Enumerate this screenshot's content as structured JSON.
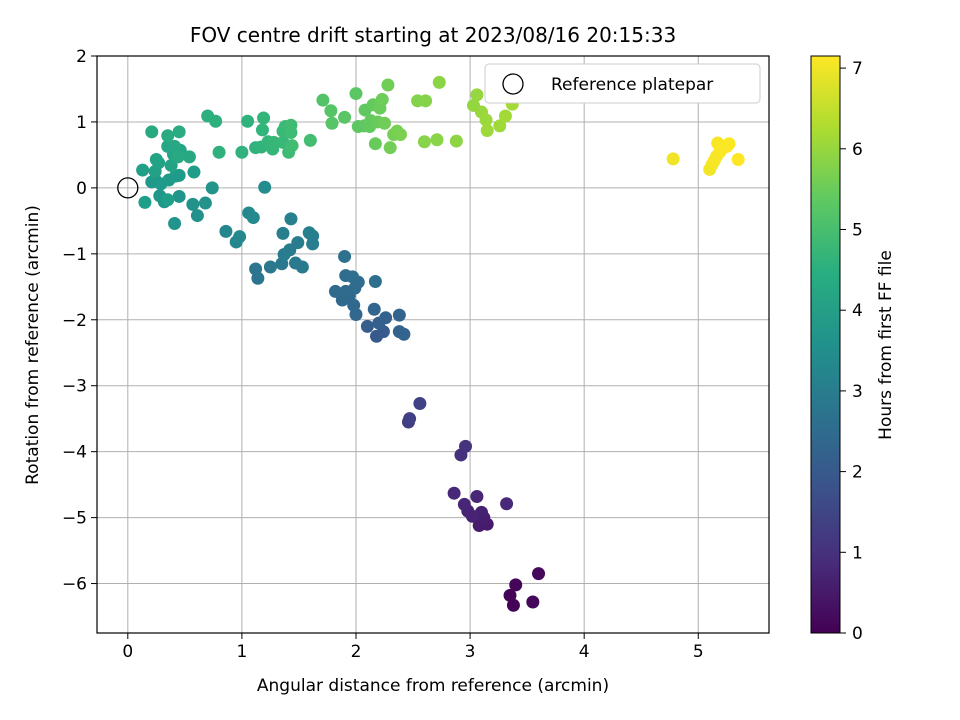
{
  "chart_data": {
    "type": "scatter",
    "title": "FOV centre drift starting at 2023/08/16 20:15:33",
    "xlabel": "Angular distance from reference (arcmin)",
    "ylabel": "Rotation from reference (arcmin)",
    "xlim": [
      -0.27,
      5.62
    ],
    "ylim": [
      -6.75,
      2.0
    ],
    "xticks": [
      0,
      1,
      2,
      3,
      4,
      5
    ],
    "yticks": [
      2,
      1,
      0,
      -1,
      -2,
      -3,
      -4,
      -5,
      -6
    ],
    "grid": true,
    "legend": {
      "position": "top-right",
      "entries": [
        "Reference platepar"
      ]
    },
    "reference_point": {
      "x": 0.0,
      "y": 0.0
    },
    "colorbar": {
      "label": "Hours from first FF file",
      "range": [
        0,
        7.15
      ],
      "ticks": [
        0,
        1,
        2,
        3,
        4,
        5,
        6,
        7
      ],
      "colormap": "viridis"
    },
    "points": [
      {
        "x": 3.38,
        "y": -6.33,
        "h": 0.05
      },
      {
        "x": 3.35,
        "y": -6.18,
        "h": 0.08
      },
      {
        "x": 3.4,
        "y": -6.02,
        "h": 0.1
      },
      {
        "x": 3.55,
        "y": -6.28,
        "h": 0.12
      },
      {
        "x": 3.6,
        "y": -5.85,
        "h": 0.15
      },
      {
        "x": 3.15,
        "y": -5.1,
        "h": 0.5
      },
      {
        "x": 3.08,
        "y": -5.12,
        "h": 0.55
      },
      {
        "x": 3.12,
        "y": -5.0,
        "h": 0.6
      },
      {
        "x": 3.1,
        "y": -4.92,
        "h": 0.65
      },
      {
        "x": 3.02,
        "y": -4.98,
        "h": 0.7
      },
      {
        "x": 2.98,
        "y": -4.9,
        "h": 0.72
      },
      {
        "x": 2.95,
        "y": -4.8,
        "h": 0.75
      },
      {
        "x": 3.06,
        "y": -4.68,
        "h": 0.78
      },
      {
        "x": 2.86,
        "y": -4.63,
        "h": 0.8
      },
      {
        "x": 3.32,
        "y": -4.79,
        "h": 0.82
      },
      {
        "x": 2.92,
        "y": -4.05,
        "h": 1.0
      },
      {
        "x": 2.96,
        "y": -3.92,
        "h": 1.05
      },
      {
        "x": 2.46,
        "y": -3.55,
        "h": 1.3
      },
      {
        "x": 2.47,
        "y": -3.5,
        "h": 1.35
      },
      {
        "x": 2.56,
        "y": -3.27,
        "h": 1.4
      },
      {
        "x": 2.18,
        "y": -2.25,
        "h": 2.0
      },
      {
        "x": 2.24,
        "y": -2.18,
        "h": 2.05
      },
      {
        "x": 2.1,
        "y": -2.1,
        "h": 2.1
      },
      {
        "x": 2.2,
        "y": -2.05,
        "h": 2.15
      },
      {
        "x": 2.26,
        "y": -1.97,
        "h": 2.2
      },
      {
        "x": 2.38,
        "y": -2.18,
        "h": 2.25
      },
      {
        "x": 2.42,
        "y": -2.22,
        "h": 2.28
      },
      {
        "x": 2.38,
        "y": -1.93,
        "h": 2.3
      },
      {
        "x": 2.16,
        "y": -1.84,
        "h": 2.32
      },
      {
        "x": 2.0,
        "y": -1.92,
        "h": 2.35
      },
      {
        "x": 1.98,
        "y": -1.78,
        "h": 2.38
      },
      {
        "x": 1.94,
        "y": -1.64,
        "h": 2.4
      },
      {
        "x": 1.88,
        "y": -1.7,
        "h": 2.42
      },
      {
        "x": 1.82,
        "y": -1.57,
        "h": 2.45
      },
      {
        "x": 1.91,
        "y": -1.57,
        "h": 2.48
      },
      {
        "x": 1.99,
        "y": -1.52,
        "h": 2.5
      },
      {
        "x": 2.02,
        "y": -1.43,
        "h": 2.52
      },
      {
        "x": 1.91,
        "y": -1.33,
        "h": 2.55
      },
      {
        "x": 1.97,
        "y": -1.35,
        "h": 2.58
      },
      {
        "x": 2.17,
        "y": -1.42,
        "h": 2.6
      },
      {
        "x": 1.9,
        "y": -1.04,
        "h": 2.65
      },
      {
        "x": 1.14,
        "y": -1.37,
        "h": 2.8
      },
      {
        "x": 1.12,
        "y": -1.23,
        "h": 2.82
      },
      {
        "x": 1.25,
        "y": -1.2,
        "h": 2.85
      },
      {
        "x": 1.35,
        "y": -1.15,
        "h": 2.88
      },
      {
        "x": 1.47,
        "y": -1.14,
        "h": 2.9
      },
      {
        "x": 1.53,
        "y": -1.2,
        "h": 2.92
      },
      {
        "x": 1.37,
        "y": -1.01,
        "h": 2.95
      },
      {
        "x": 1.42,
        "y": -0.94,
        "h": 2.98
      },
      {
        "x": 1.49,
        "y": -0.83,
        "h": 3.0
      },
      {
        "x": 1.62,
        "y": -0.85,
        "h": 3.02
      },
      {
        "x": 1.62,
        "y": -0.73,
        "h": 3.05
      },
      {
        "x": 1.59,
        "y": -0.68,
        "h": 3.08
      },
      {
        "x": 1.36,
        "y": -0.69,
        "h": 3.1
      },
      {
        "x": 1.43,
        "y": -0.47,
        "h": 3.12
      },
      {
        "x": 0.86,
        "y": -0.66,
        "h": 3.3
      },
      {
        "x": 0.95,
        "y": -0.82,
        "h": 3.32
      },
      {
        "x": 0.98,
        "y": -0.74,
        "h": 3.35
      },
      {
        "x": 1.06,
        "y": -0.38,
        "h": 3.38
      },
      {
        "x": 1.1,
        "y": -0.45,
        "h": 3.4
      },
      {
        "x": 1.2,
        "y": 0.01,
        "h": 3.45
      },
      {
        "x": 0.61,
        "y": -0.42,
        "h": 3.6
      },
      {
        "x": 0.68,
        "y": -0.23,
        "h": 3.62
      },
      {
        "x": 0.57,
        "y": -0.25,
        "h": 3.65
      },
      {
        "x": 0.41,
        "y": -0.54,
        "h": 3.68
      },
      {
        "x": 0.74,
        "y": 0.0,
        "h": 3.7
      },
      {
        "x": 0.45,
        "y": -0.13,
        "h": 3.72
      },
      {
        "x": 0.32,
        "y": -0.21,
        "h": 3.75
      },
      {
        "x": 0.28,
        "y": -0.12,
        "h": 3.78
      },
      {
        "x": 0.21,
        "y": 0.09,
        "h": 3.8
      },
      {
        "x": 0.24,
        "y": 0.12,
        "h": 3.82
      },
      {
        "x": 0.29,
        "y": 0.06,
        "h": 3.85
      },
      {
        "x": 0.36,
        "y": 0.12,
        "h": 3.88
      },
      {
        "x": 0.42,
        "y": 0.18,
        "h": 3.9
      },
      {
        "x": 0.45,
        "y": 0.19,
        "h": 3.92
      },
      {
        "x": 0.58,
        "y": 0.24,
        "h": 3.95
      },
      {
        "x": 0.15,
        "y": -0.22,
        "h": 3.97
      },
      {
        "x": 0.35,
        "y": -0.18,
        "h": 4.0
      },
      {
        "x": 0.13,
        "y": 0.27,
        "h": 4.05
      },
      {
        "x": 0.24,
        "y": 0.25,
        "h": 4.08
      },
      {
        "x": 0.27,
        "y": 0.38,
        "h": 4.1
      },
      {
        "x": 0.25,
        "y": 0.43,
        "h": 4.12
      },
      {
        "x": 0.38,
        "y": 0.34,
        "h": 4.15
      },
      {
        "x": 0.4,
        "y": 0.51,
        "h": 4.18
      },
      {
        "x": 0.46,
        "y": 0.57,
        "h": 4.2
      },
      {
        "x": 0.35,
        "y": 0.63,
        "h": 4.22
      },
      {
        "x": 0.41,
        "y": 0.63,
        "h": 4.25
      },
      {
        "x": 0.44,
        "y": 0.47,
        "h": 4.28
      },
      {
        "x": 0.54,
        "y": 0.47,
        "h": 4.3
      },
      {
        "x": 0.21,
        "y": 0.85,
        "h": 4.32
      },
      {
        "x": 0.35,
        "y": 0.79,
        "h": 4.35
      },
      {
        "x": 0.45,
        "y": 0.85,
        "h": 4.38
      },
      {
        "x": 0.7,
        "y": 1.09,
        "h": 4.5
      },
      {
        "x": 0.77,
        "y": 1.01,
        "h": 4.52
      },
      {
        "x": 0.8,
        "y": 0.54,
        "h": 4.55
      },
      {
        "x": 1.0,
        "y": 0.54,
        "h": 4.58
      },
      {
        "x": 1.05,
        "y": 1.01,
        "h": 4.6
      },
      {
        "x": 1.12,
        "y": 0.61,
        "h": 4.62
      },
      {
        "x": 1.17,
        "y": 0.62,
        "h": 4.65
      },
      {
        "x": 1.18,
        "y": 0.88,
        "h": 4.68
      },
      {
        "x": 1.19,
        "y": 1.06,
        "h": 4.7
      },
      {
        "x": 1.23,
        "y": 0.7,
        "h": 4.72
      },
      {
        "x": 1.27,
        "y": 0.59,
        "h": 4.75
      },
      {
        "x": 1.28,
        "y": 0.69,
        "h": 4.78
      },
      {
        "x": 1.36,
        "y": 0.69,
        "h": 4.8
      },
      {
        "x": 1.36,
        "y": 0.86,
        "h": 4.82
      },
      {
        "x": 1.38,
        "y": 0.93,
        "h": 4.85
      },
      {
        "x": 1.41,
        "y": 0.54,
        "h": 4.88
      },
      {
        "x": 1.43,
        "y": 0.84,
        "h": 4.9
      },
      {
        "x": 1.43,
        "y": 0.95,
        "h": 4.92
      },
      {
        "x": 1.44,
        "y": 0.64,
        "h": 4.95
      },
      {
        "x": 1.6,
        "y": 0.72,
        "h": 4.98
      },
      {
        "x": 1.71,
        "y": 1.33,
        "h": 5.2
      },
      {
        "x": 1.78,
        "y": 1.17,
        "h": 5.22
      },
      {
        "x": 1.79,
        "y": 0.98,
        "h": 5.25
      },
      {
        "x": 1.9,
        "y": 1.07,
        "h": 5.28
      },
      {
        "x": 2.0,
        "y": 1.43,
        "h": 5.3
      },
      {
        "x": 2.02,
        "y": 0.93,
        "h": 5.32
      },
      {
        "x": 2.07,
        "y": 0.94,
        "h": 5.35
      },
      {
        "x": 2.08,
        "y": 1.18,
        "h": 5.38
      },
      {
        "x": 2.12,
        "y": 0.93,
        "h": 5.4
      },
      {
        "x": 2.13,
        "y": 1.02,
        "h": 5.42
      },
      {
        "x": 2.15,
        "y": 1.26,
        "h": 5.45
      },
      {
        "x": 2.17,
        "y": 0.67,
        "h": 5.48
      },
      {
        "x": 2.19,
        "y": 1.0,
        "h": 5.5
      },
      {
        "x": 2.21,
        "y": 1.21,
        "h": 5.52
      },
      {
        "x": 2.23,
        "y": 1.34,
        "h": 5.55
      },
      {
        "x": 2.25,
        "y": 0.98,
        "h": 5.58
      },
      {
        "x": 2.28,
        "y": 1.56,
        "h": 5.6
      },
      {
        "x": 2.3,
        "y": 0.61,
        "h": 5.62
      },
      {
        "x": 2.33,
        "y": 0.81,
        "h": 5.65
      },
      {
        "x": 2.36,
        "y": 0.86,
        "h": 5.68
      },
      {
        "x": 2.39,
        "y": 0.81,
        "h": 5.7
      },
      {
        "x": 2.54,
        "y": 1.32,
        "h": 5.8
      },
      {
        "x": 2.61,
        "y": 1.32,
        "h": 5.82
      },
      {
        "x": 2.6,
        "y": 0.7,
        "h": 5.85
      },
      {
        "x": 2.71,
        "y": 0.73,
        "h": 5.88
      },
      {
        "x": 2.73,
        "y": 1.6,
        "h": 5.9
      },
      {
        "x": 2.88,
        "y": 0.71,
        "h": 5.92
      },
      {
        "x": 3.03,
        "y": 1.25,
        "h": 6.0
      },
      {
        "x": 3.06,
        "y": 1.41,
        "h": 6.02
      },
      {
        "x": 3.1,
        "y": 1.15,
        "h": 6.05
      },
      {
        "x": 3.14,
        "y": 1.03,
        "h": 6.08
      },
      {
        "x": 3.15,
        "y": 0.87,
        "h": 6.1
      },
      {
        "x": 3.26,
        "y": 0.94,
        "h": 6.12
      },
      {
        "x": 3.31,
        "y": 1.09,
        "h": 6.15
      },
      {
        "x": 3.37,
        "y": 1.27,
        "h": 6.18
      },
      {
        "x": 4.78,
        "y": 0.44,
        "h": 7.0
      },
      {
        "x": 5.1,
        "y": 0.28,
        "h": 7.02
      },
      {
        "x": 5.12,
        "y": 0.35,
        "h": 7.04
      },
      {
        "x": 5.14,
        "y": 0.41,
        "h": 7.06
      },
      {
        "x": 5.16,
        "y": 0.48,
        "h": 7.08
      },
      {
        "x": 5.17,
        "y": 0.68,
        "h": 7.1
      },
      {
        "x": 5.19,
        "y": 0.55,
        "h": 7.11
      },
      {
        "x": 5.22,
        "y": 0.61,
        "h": 7.12
      },
      {
        "x": 5.25,
        "y": 0.63,
        "h": 7.13
      },
      {
        "x": 5.27,
        "y": 0.67,
        "h": 7.14
      },
      {
        "x": 5.35,
        "y": 0.43,
        "h": 7.15
      }
    ]
  }
}
